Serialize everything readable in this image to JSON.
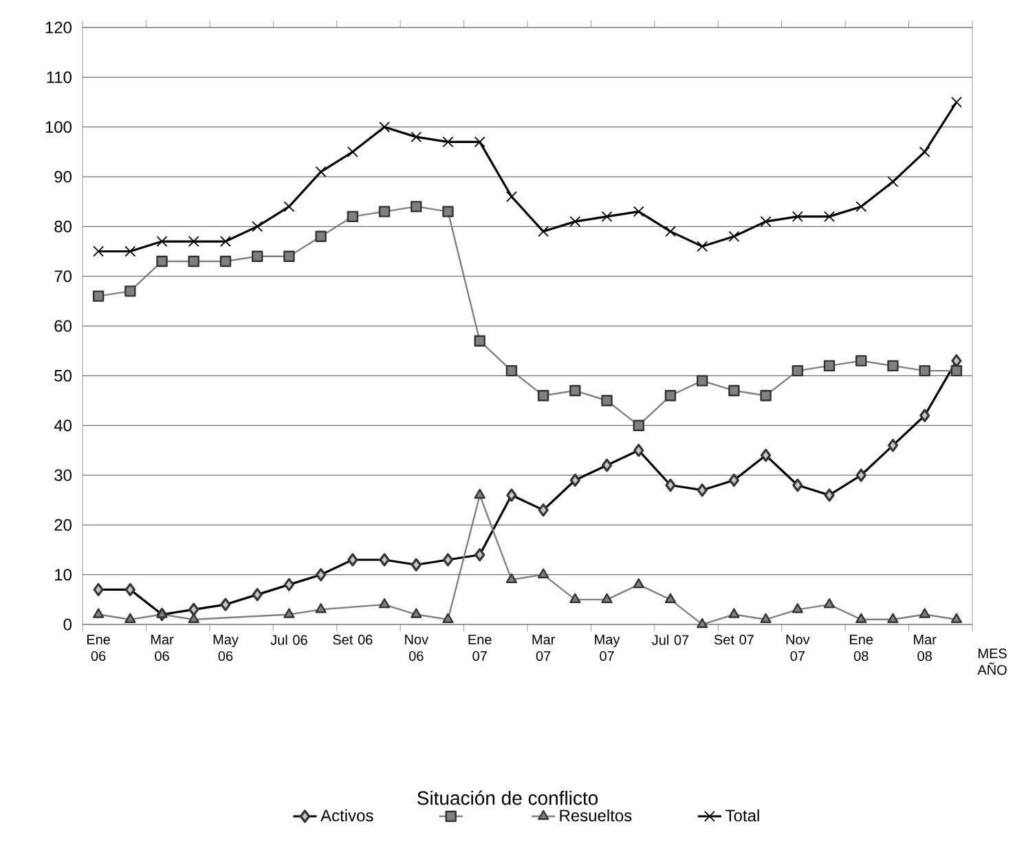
{
  "chart_data": {
    "type": "line",
    "legend_title": "Situación de conflicto",
    "xlabel": "MES AÑO",
    "categories": [
      "Ene 06",
      null,
      "Mar 06",
      null,
      "May 06",
      null,
      "Jul 06",
      null,
      "Set 06",
      null,
      "Nov 06",
      null,
      "Ene 07",
      null,
      "Mar 07",
      null,
      "May 07",
      null,
      "Jul 07",
      null,
      "Set 07",
      null,
      "Nov 07",
      null,
      "Ene 08",
      null,
      "Mar 08",
      null
    ],
    "series": [
      {
        "name": "Activos",
        "color": "#000000",
        "marker": "diamond",
        "values": [
          7,
          7,
          2,
          3,
          4,
          6,
          8,
          10,
          13,
          13,
          12,
          13,
          14,
          26,
          23,
          29,
          32,
          35,
          28,
          27,
          29,
          34,
          28,
          26,
          30,
          36,
          42,
          53
        ]
      },
      {
        "color": "#808080",
        "marker": "square",
        "values": [
          66,
          67,
          73,
          73,
          73,
          74,
          74,
          78,
          82,
          83,
          84,
          83,
          57,
          51,
          46,
          47,
          45,
          40,
          46,
          49,
          47,
          46,
          51,
          52,
          53,
          52,
          51,
          51
        ]
      },
      {
        "name": "Resueltos",
        "color": "#808080",
        "marker": "triangle",
        "values": [
          2,
          1,
          2,
          1,
          null,
          null,
          2,
          3,
          null,
          4,
          2,
          1,
          26,
          9,
          10,
          5,
          5,
          8,
          5,
          0,
          2,
          1,
          3,
          4,
          1,
          1,
          2,
          1
        ]
      },
      {
        "name": "Total",
        "color": "#000000",
        "marker": "cross",
        "values": [
          75,
          75,
          77,
          77,
          77,
          80,
          84,
          91,
          95,
          100,
          98,
          97,
          97,
          86,
          79,
          81,
          82,
          83,
          79,
          76,
          78,
          81,
          82,
          82,
          84,
          89,
          95,
          105
        ]
      }
    ],
    "ylim": [
      0,
      120
    ],
    "yticks": [
      0,
      10,
      20,
      30,
      40,
      50,
      60,
      70,
      80,
      90,
      100,
      110,
      120
    ],
    "grid": "y",
    "legend": "bottom"
  }
}
